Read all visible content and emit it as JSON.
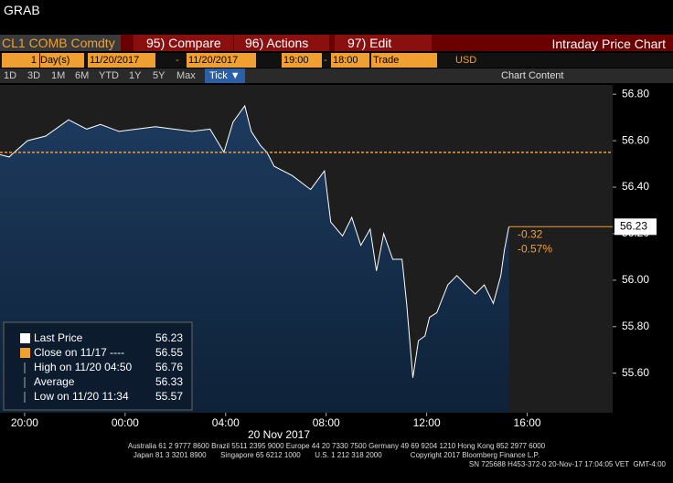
{
  "header": {
    "title": "GRAB"
  },
  "toolbar": {
    "ticker": "CL1 COMB Comdty",
    "compare": "95) Compare",
    "actions": "96) Actions",
    "edit": "97) Edit",
    "view_title": "Intraday Price Chart"
  },
  "range_bar": {
    "count": "1",
    "unit": "Day(s)",
    "start_date": "11/20/2017",
    "dash1": "-",
    "end_date": "11/20/2017",
    "start_time": "19:00",
    "dash2": "-",
    "end_time": "18:00",
    "field": "Trade",
    "currency": "USD"
  },
  "period_bar": {
    "periods": [
      "1D",
      "3D",
      "1M",
      "6M",
      "YTD",
      "1Y",
      "5Y",
      "Max"
    ],
    "selected": "Tick ▼",
    "content": "Chart Content"
  },
  "chart_data": {
    "type": "area",
    "date_label": "20 Nov 2017",
    "color": "#ffffff",
    "fill": "#1d3a5e",
    "x": [
      19.02,
      19.38,
      20.11,
      20.84,
      21.75,
      22.47,
      23.02,
      23.75,
      24.47,
      25.2,
      25.93,
      26.65,
      27.38,
      27.93,
      28.29,
      28.76,
      29.02,
      29.38,
      29.64,
      29.93,
      30.65,
      31.38,
      31.93,
      32.18,
      32.65,
      33.02,
      33.38,
      33.75,
      34.0,
      34.29,
      34.65,
      35.02,
      35.2,
      35.45,
      35.67,
      35.93,
      36.11,
      36.4,
      36.84,
      37.2,
      37.56,
      37.93,
      38.29,
      38.65,
      38.95,
      39.09,
      39.27
    ],
    "series": [
      {
        "name": "Last Price",
        "values": [
          56.54,
          56.53,
          56.6,
          56.62,
          56.69,
          56.65,
          56.67,
          56.64,
          56.65,
          56.66,
          56.65,
          56.64,
          56.65,
          56.55,
          56.68,
          56.75,
          56.64,
          56.58,
          56.55,
          56.49,
          56.45,
          56.39,
          56.47,
          56.25,
          56.19,
          56.27,
          56.15,
          56.22,
          56.04,
          56.2,
          56.09,
          56.09,
          55.9,
          55.58,
          55.74,
          55.76,
          55.84,
          55.86,
          55.98,
          56.02,
          55.98,
          55.94,
          55.98,
          55.9,
          56.02,
          56.13,
          56.23
        ]
      }
    ],
    "xlim": [
      19.02,
      43.4
    ],
    "ylim": [
      55.43,
      56.84
    ],
    "xticks": [
      {
        "value": 20,
        "label": "20:00"
      },
      {
        "value": 24,
        "label": "00:00"
      },
      {
        "value": 28,
        "label": "04:00"
      },
      {
        "value": 32,
        "label": "08:00"
      },
      {
        "value": 36,
        "label": "12:00"
      },
      {
        "value": 40,
        "label": "16:00"
      }
    ],
    "yticks": [
      {
        "value": 55.6,
        "label": "55.60"
      },
      {
        "value": 55.8,
        "label": "55.80"
      },
      {
        "value": 56.0,
        "label": "56.00"
      },
      {
        "value": 56.2,
        "label": "56.20"
      },
      {
        "value": 56.4,
        "label": "56.40"
      },
      {
        "value": 56.6,
        "label": "56.60"
      },
      {
        "value": 56.8,
        "label": "56.80"
      }
    ],
    "stats": [
      {
        "label": "Last Price",
        "value": 56.23
      },
      {
        "label": "Close on 11/17 ----",
        "value": 56.55
      },
      {
        "label": "High on 11/20 04:50",
        "value": 56.76
      },
      {
        "label": "Average",
        "value": 56.33
      },
      {
        "label": "Low on 11/20 11:34",
        "value": 55.57
      }
    ],
    "change": -0.32,
    "change_percent": "-0.57%"
  },
  "footer": {
    "line1": "Australia 61 2 9777 8600 Brazil 5511 2395 9000 Europe 44 20 7330 7500 Germany 49 69 9204 1210 Hong Kong 852 2977 6000",
    "line2": "Japan 81 3 3201 8900       Singapore 65 6212 1000       U.S. 1 212 318 2000              Copyright 2017 Bloomberg Finance L.P.",
    "line3": "SN 725688 H453-372-0 20-Nov-17 17:04:05 VET  GMT-4:00"
  }
}
